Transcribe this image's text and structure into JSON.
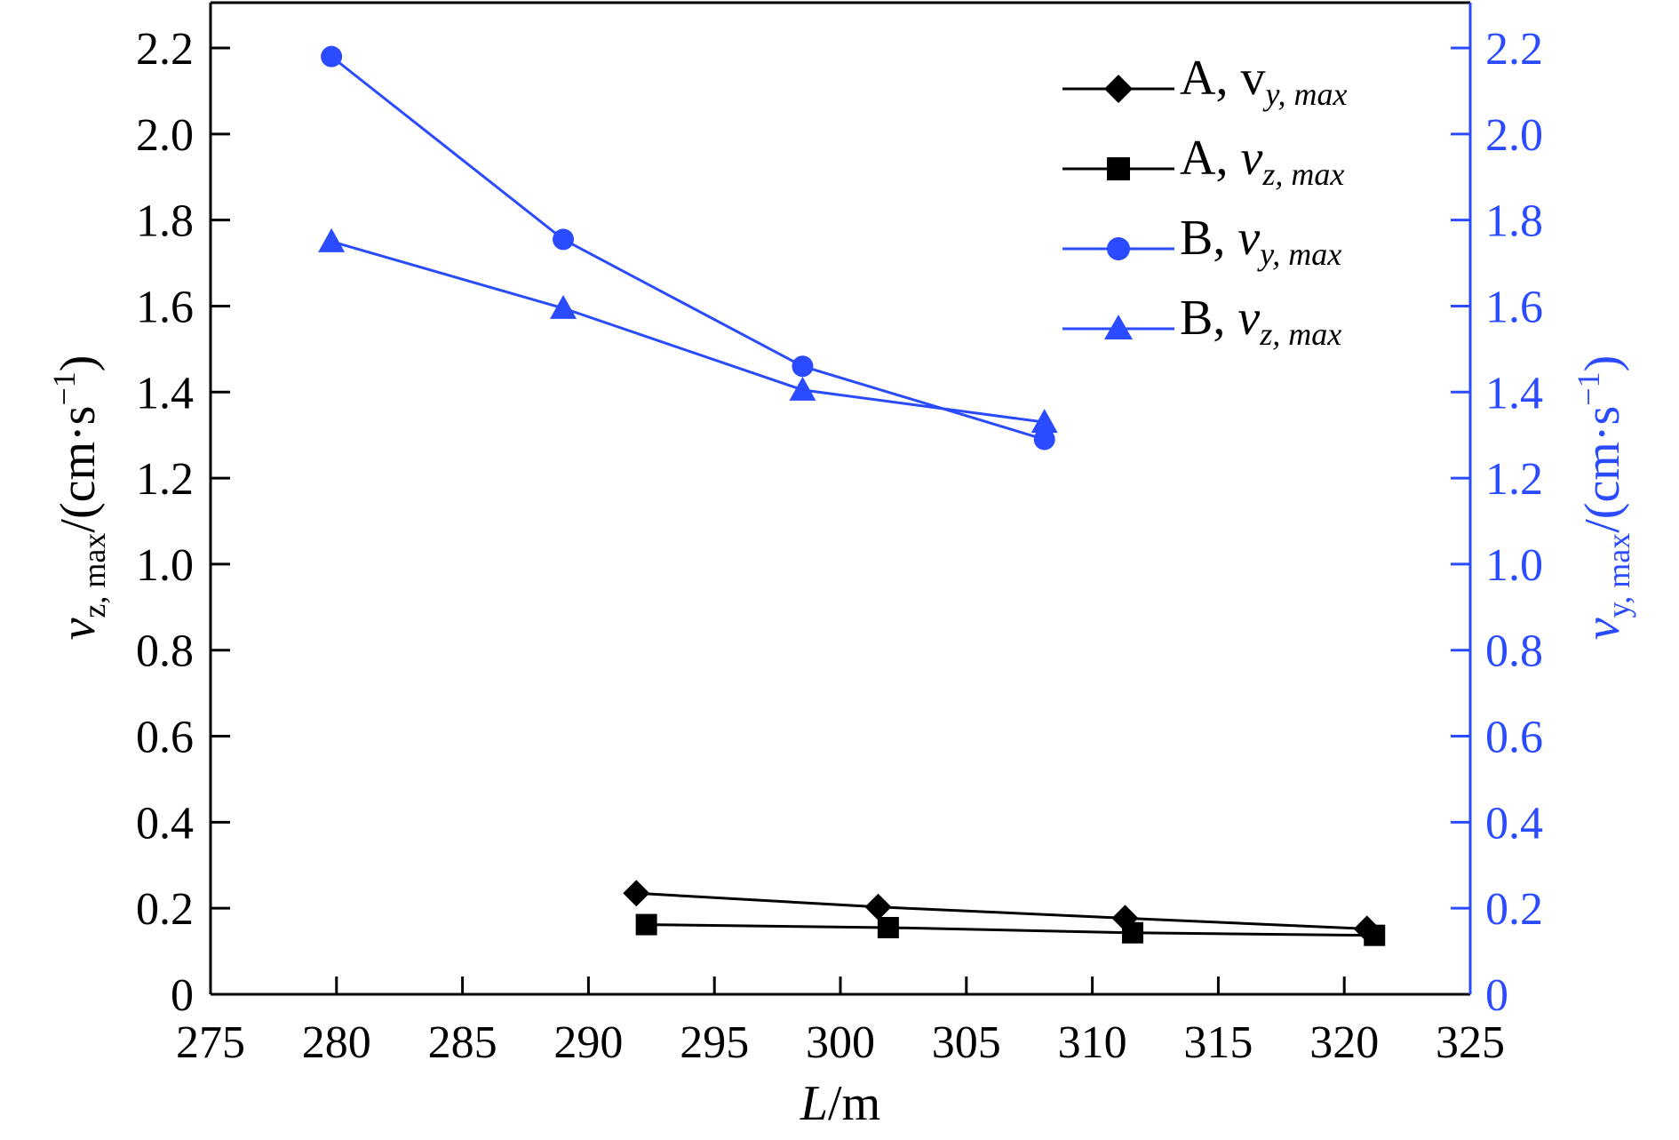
{
  "chart_data": {
    "type": "line",
    "axes": {
      "x": {
        "label_main": "L",
        "label_unit": "/m",
        "range": [
          275,
          325
        ],
        "ticks": [
          "275",
          "280",
          "285",
          "290",
          "295",
          "300",
          "305",
          "310",
          "315",
          "320",
          "325"
        ]
      },
      "y_left": {
        "label_var": "v",
        "label_sub": "z, max",
        "label_unit": "/(cm·s",
        "label_sup": "−1",
        "label_close": ")",
        "range": [
          0,
          2.3
        ],
        "ticks": [
          "0",
          "0.2",
          "0.4",
          "0.6",
          "0.8",
          "1.0",
          "1.2",
          "1.4",
          "1.6",
          "1.8",
          "2.0",
          "2.2"
        ],
        "color": "#000000"
      },
      "y_right": {
        "label_var": "v",
        "label_sub": "y, max",
        "label_unit": "/(cm·s",
        "label_sup": "−1",
        "label_close": ")",
        "range": [
          0,
          2.3
        ],
        "ticks": [
          "0",
          "0.2",
          "0.4",
          "0.6",
          "0.8",
          "1.0",
          "1.2",
          "1.4",
          "1.6",
          "1.8",
          "2.0",
          "2.2"
        ],
        "color": "#2a4bff"
      }
    },
    "grid": false,
    "legend_position": "top-right",
    "series": [
      {
        "label_prefix": "A, ",
        "label_var": "v",
        "label_sub": "y, max",
        "var_italic": false,
        "color": "#000000",
        "marker": "diamond",
        "x": [
          291.9,
          301.5,
          311.3,
          320.9
        ],
        "y": [
          0.235,
          0.203,
          0.177,
          0.152
        ]
      },
      {
        "label_prefix": "A, ",
        "label_var": "v",
        "label_sub": "z, max",
        "var_italic": true,
        "color": "#000000",
        "marker": "square",
        "x": [
          292.3,
          301.9,
          311.6,
          321.2
        ],
        "y": [
          0.162,
          0.155,
          0.143,
          0.137
        ]
      },
      {
        "label_prefix": "B, ",
        "label_var": "v",
        "label_sub": "y, max",
        "var_italic": true,
        "color": "#2a4bff",
        "marker": "circle",
        "x": [
          279.8,
          289.0,
          298.5,
          308.1
        ],
        "y": [
          2.18,
          1.755,
          1.46,
          1.29
        ]
      },
      {
        "label_prefix": "B, ",
        "label_var": "v",
        "label_sub": "z, max",
        "var_italic": true,
        "color": "#2a4bff",
        "marker": "triangle",
        "x": [
          279.8,
          289.0,
          298.5,
          308.1
        ],
        "y": [
          1.75,
          1.595,
          1.405,
          1.33
        ]
      }
    ]
  }
}
